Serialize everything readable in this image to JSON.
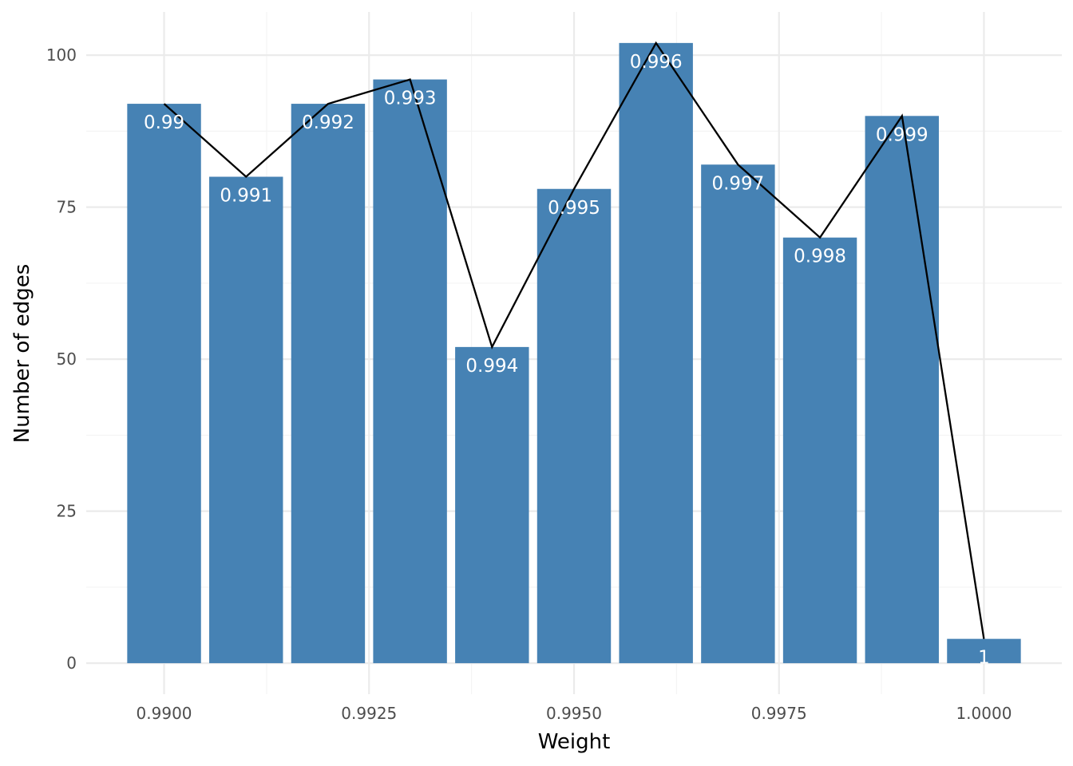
{
  "chart_data": {
    "type": "bar",
    "xlabel": "Weight",
    "ylabel": "Number of edges",
    "x": [
      0.99,
      0.991,
      0.992,
      0.993,
      0.994,
      0.995,
      0.996,
      0.997,
      0.998,
      0.999,
      1.0
    ],
    "values": [
      92,
      80,
      92,
      96,
      52,
      78,
      102,
      82,
      70,
      90,
      4
    ],
    "bar_labels": [
      "0.99",
      "0.991",
      "0.992",
      "0.993",
      "0.994",
      "0.995",
      "0.996",
      "0.997",
      "0.998",
      "0.999",
      "1"
    ],
    "overlay_line": "connects bar tops",
    "xlim": [
      0.98905,
      1.00095
    ],
    "ylim": [
      -5.1,
      107.1
    ],
    "x_ticks": [
      {
        "value": 0.99,
        "label": "0.9900"
      },
      {
        "value": 0.9925,
        "label": "0.9925"
      },
      {
        "value": 0.995,
        "label": "0.9950"
      },
      {
        "value": 0.9975,
        "label": "0.9975"
      },
      {
        "value": 1.0,
        "label": "1.0000"
      }
    ],
    "y_ticks": [
      {
        "value": 0,
        "label": "0"
      },
      {
        "value": 25,
        "label": "25"
      },
      {
        "value": 50,
        "label": "50"
      },
      {
        "value": 75,
        "label": "75"
      },
      {
        "value": 100,
        "label": "100"
      }
    ],
    "grid": true,
    "legend": "none",
    "colors": {
      "bar": "#4682b4",
      "line": "#000000",
      "label": "#ffffff"
    }
  }
}
